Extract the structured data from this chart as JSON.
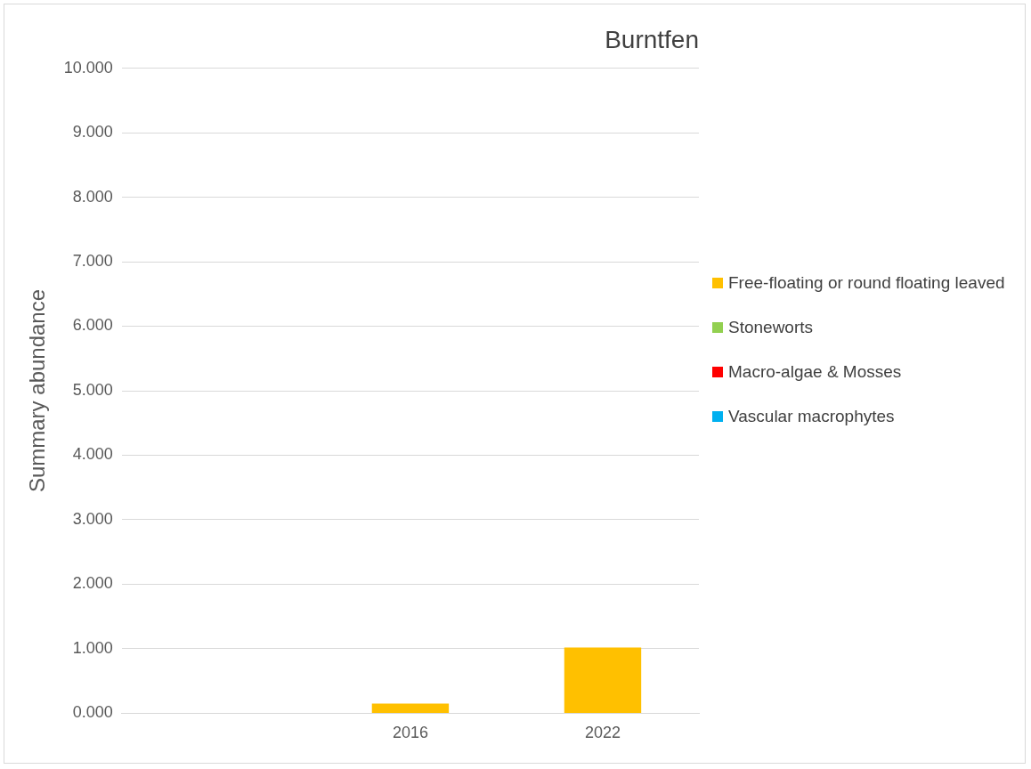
{
  "chart_data": {
    "type": "bar",
    "title": "Burntfen",
    "ylabel": "Summary abundance",
    "categories": [
      null,
      "2016",
      "2022"
    ],
    "stacked": true,
    "series": [
      {
        "name": "Vascular macrophytes",
        "color": "#00b0f0",
        "values": [
          0,
          0,
          0
        ]
      },
      {
        "name": "Macro-algae & Mosses",
        "color": "#ff0000",
        "values": [
          0,
          0,
          0
        ]
      },
      {
        "name": "Stoneworts",
        "color": "#92d050",
        "values": [
          0,
          0,
          0
        ]
      },
      {
        "name": "Free-floating or round floating leaved",
        "color": "#ffc000",
        "values": [
          0,
          0.15,
          1.02
        ]
      }
    ],
    "ylim": [
      0,
      10
    ],
    "yticks": [
      {
        "value": 0,
        "label": "0.000"
      },
      {
        "value": 1,
        "label": "1.000"
      },
      {
        "value": 2,
        "label": "2.000"
      },
      {
        "value": 3,
        "label": "3.000"
      },
      {
        "value": 4,
        "label": "4.000"
      },
      {
        "value": 5,
        "label": "5.000"
      },
      {
        "value": 6,
        "label": "6.000"
      },
      {
        "value": 7,
        "label": "7.000"
      },
      {
        "value": 8,
        "label": "8.000"
      },
      {
        "value": 9,
        "label": "9.000"
      },
      {
        "value": 10,
        "label": "10.000"
      }
    ],
    "grid": "y",
    "legend": "right"
  }
}
